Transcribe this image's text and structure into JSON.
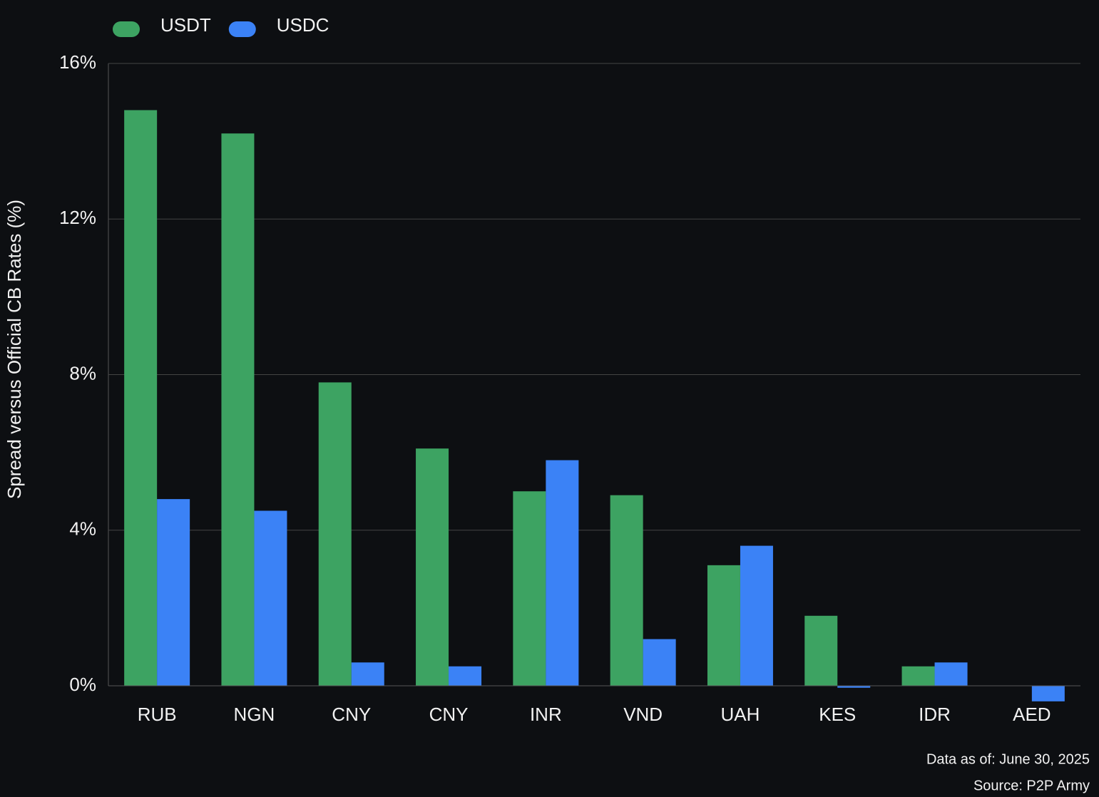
{
  "chart_data": {
    "type": "bar",
    "y_label": "Spread versus Official CB Rates (%)",
    "categories": [
      "RUB",
      "NGN",
      "CNY",
      "CNY",
      "INR",
      "VND",
      "UAH",
      "KES",
      "IDR",
      "AED"
    ],
    "series": [
      {
        "name": "USDT",
        "color": "#3da362",
        "values": [
          14.8,
          14.2,
          7.8,
          6.1,
          5.0,
          4.9,
          3.1,
          1.8,
          0.5,
          null
        ]
      },
      {
        "name": "USDC",
        "color": "#3b82f6",
        "values": [
          4.8,
          4.5,
          0.6,
          0.5,
          5.8,
          1.2,
          3.6,
          -0.05,
          0.6,
          -0.4
        ]
      }
    ],
    "ylim": [
      0,
      16
    ],
    "yticks": [
      {
        "value": 0,
        "label": "0%"
      },
      {
        "value": 4,
        "label": "4%"
      },
      {
        "value": 8,
        "label": "8%"
      },
      {
        "value": 12,
        "label": "12%"
      },
      {
        "value": 16,
        "label": "16%"
      }
    ],
    "grid": true,
    "notes": [
      "Data as of: June 30, 2025",
      "Source: P2P Army"
    ]
  }
}
